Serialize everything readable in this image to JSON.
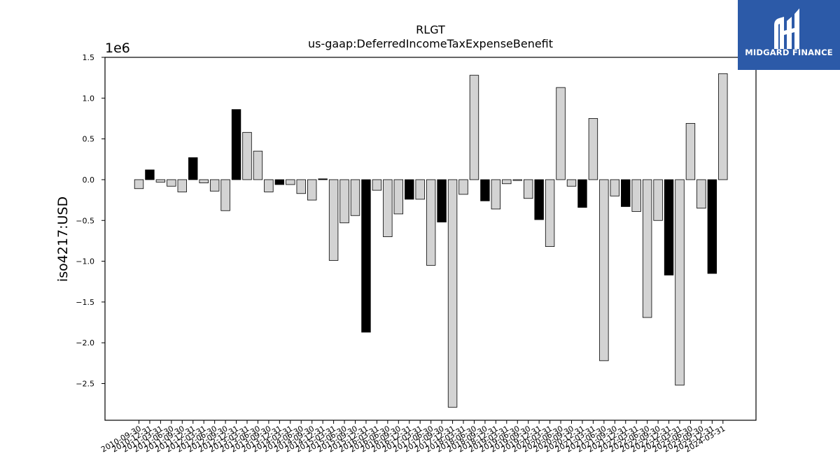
{
  "logo": {
    "text": "MIDGARD FINANCE",
    "background": "#2c5aa8",
    "icon": "midgard-m-logo-icon"
  },
  "chart_data": {
    "type": "bar",
    "title": "RLGT",
    "subtitle": "us-gaap:DeferredIncomeTaxExpenseBenefit",
    "ylabel": "iso4217:USD",
    "xlabel": "",
    "offset_text": "1e6",
    "ylim": [
      -2950000,
      1500000
    ],
    "yticks": [
      1.5,
      1.0,
      0.5,
      0.0,
      -0.5,
      -1.0,
      -1.5,
      -2.0,
      -2.5
    ],
    "ytick_labels": [
      "1.5",
      "1.0",
      "0.5",
      "0.0",
      "−0.5",
      "−1.0",
      "−1.5",
      "−2.0",
      "−2.5"
    ],
    "grid": false,
    "colors": {
      "quarter": "#d3d3d3",
      "fiscal_year": "#000000",
      "edge": "#000000"
    },
    "categories": [
      "2010-09-30",
      "2010-12-31",
      "2011-03-31",
      "2011-06-30",
      "2011-09-30",
      "2011-12-31",
      "2012-03-31",
      "2012-06-30",
      "2012-09-30",
      "2012-12-31",
      "2013-03-31",
      "2013-06-30",
      "2013-09-30",
      "2013-12-31",
      "2014-03-31",
      "2014-06-30",
      "2014-09-30",
      "2014-12-31",
      "2015-03-31",
      "2015-06-30",
      "2015-09-30",
      "2015-12-31",
      "2016-03-31",
      "2016-06-30",
      "2016-09-30",
      "2016-12-31",
      "2017-03-31",
      "2017-06-30",
      "2017-09-30",
      "2017-12-31",
      "2018-03-31",
      "2018-06-30",
      "2018-09-30",
      "2018-12-31",
      "2019-03-31",
      "2019-06-30",
      "2019-09-30",
      "2019-12-31",
      "2020-03-31",
      "2020-06-30",
      "2020-09-30",
      "2020-12-31",
      "2021-03-31",
      "2021-06-30",
      "2021-09-30",
      "2021-12-31",
      "2022-03-31",
      "2022-06-30",
      "2022-09-30",
      "2022-12-31",
      "2023-03-31",
      "2023-06-30",
      "2023-09-30",
      "2023-12-31",
      "2024-03-31"
    ],
    "values": [
      -110000,
      120000,
      -30000,
      -80000,
      -150000,
      270000,
      -40000,
      -140000,
      -380000,
      860000,
      580000,
      350000,
      -150000,
      -60000,
      -60000,
      -170000,
      -250000,
      10000,
      -990000,
      -530000,
      -440000,
      -1870000,
      -130000,
      -700000,
      -420000,
      -240000,
      -240000,
      -1050000,
      -520000,
      -2790000,
      -180000,
      1280000,
      -260000,
      -360000,
      -50000,
      -10000,
      -230000,
      -490000,
      -820000,
      1130000,
      -80000,
      -340000,
      750000,
      -2220000,
      -200000,
      -330000,
      -390000,
      -1690000,
      -500000,
      -1170000,
      -2520000,
      690000,
      -350000,
      -1150000,
      1300000
    ],
    "bar_kinds": [
      "q",
      "fy",
      "q",
      "q",
      "q",
      "fy",
      "q",
      "q",
      "q",
      "fy",
      "q",
      "q",
      "q",
      "fy",
      "q",
      "q",
      "q",
      "fy",
      "q",
      "q",
      "q",
      "fy",
      "q",
      "q",
      "q",
      "fy",
      "q",
      "q",
      "fy",
      "q",
      "q",
      "q",
      "fy",
      "q",
      "q",
      "q",
      "q",
      "fy",
      "q",
      "q",
      "q",
      "fy",
      "q",
      "q",
      "q",
      "fy",
      "q",
      "q",
      "q",
      "fy",
      "q",
      "q",
      "q",
      "fy",
      "q"
    ]
  }
}
